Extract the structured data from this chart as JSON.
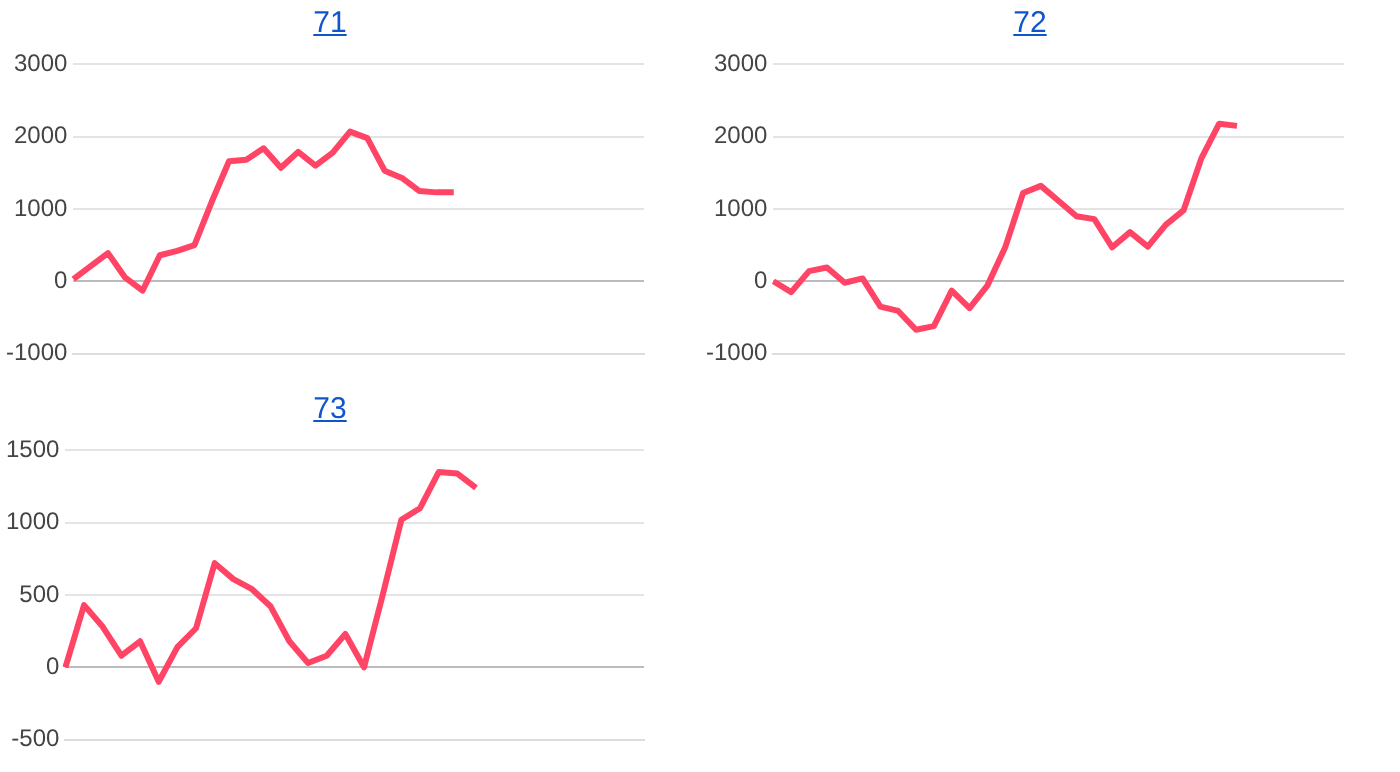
{
  "chart_data": [
    {
      "type": "line",
      "title": "71",
      "categories": [
        null,
        null,
        null,
        null,
        null,
        null,
        null,
        null,
        null,
        null,
        null,
        null,
        null,
        null,
        null,
        null,
        null,
        null,
        null,
        null,
        null,
        null,
        null,
        null,
        null,
        null,
        null,
        null,
        null,
        null,
        null,
        null,
        null,
        null
      ],
      "series": [
        {
          "color": "#ff4466",
          "values": [
            30,
            210,
            390,
            50,
            -130,
            360,
            420,
            500,
            1100,
            1660,
            1680,
            1840,
            1570,
            1790,
            1600,
            1780,
            2070,
            1980,
            1530,
            1430,
            1250,
            1230,
            1230,
            null,
            null,
            null,
            null,
            null,
            null,
            null,
            null,
            null,
            null,
            null
          ]
        }
      ],
      "ylim": [
        -1000,
        3000
      ],
      "yticks": [
        -1000,
        0,
        1000,
        2000,
        3000
      ],
      "grid": "y",
      "tick_labels": "y",
      "marker": "none",
      "legend": false
    },
    {
      "type": "line",
      "title": "72",
      "categories": [
        null,
        null,
        null,
        null,
        null,
        null,
        null,
        null,
        null,
        null,
        null,
        null,
        null,
        null,
        null,
        null,
        null,
        null,
        null,
        null,
        null,
        null,
        null,
        null,
        null,
        null,
        null,
        null,
        null,
        null,
        null,
        null,
        null
      ],
      "series": [
        {
          "color": "#ff4466",
          "values": [
            0,
            -150,
            140,
            190,
            -20,
            40,
            -350,
            -410,
            -670,
            -620,
            -130,
            -370,
            -60,
            470,
            1220,
            1320,
            1110,
            900,
            860,
            470,
            680,
            480,
            780,
            980,
            1700,
            2180,
            2150,
            null,
            null,
            null,
            null,
            null,
            null
          ]
        }
      ],
      "ylim": [
        -1000,
        3000
      ],
      "yticks": [
        -1000,
        0,
        1000,
        2000,
        3000
      ],
      "grid": "y",
      "tick_labels": "y",
      "marker": "none",
      "legend": false
    },
    {
      "type": "line",
      "title": "73",
      "categories": [
        null,
        null,
        null,
        null,
        null,
        null,
        null,
        null,
        null,
        null,
        null,
        null,
        null,
        null,
        null,
        null,
        null,
        null,
        null,
        null,
        null,
        null,
        null,
        null,
        null,
        null,
        null,
        null,
        null,
        null,
        null,
        null
      ],
      "series": [
        {
          "color": "#ff4466",
          "values": [
            0,
            430,
            280,
            80,
            180,
            -100,
            140,
            270,
            720,
            610,
            540,
            420,
            180,
            30,
            80,
            230,
            0,
            500,
            1020,
            1100,
            1350,
            1340,
            1240,
            null,
            null,
            null,
            null,
            null,
            null,
            null,
            null,
            null
          ]
        }
      ],
      "ylim": [
        -500,
        1500
      ],
      "yticks": [
        -500,
        0,
        500,
        1000,
        1500
      ],
      "grid": "y",
      "tick_labels": "y",
      "marker": "none",
      "legend": false
    }
  ]
}
